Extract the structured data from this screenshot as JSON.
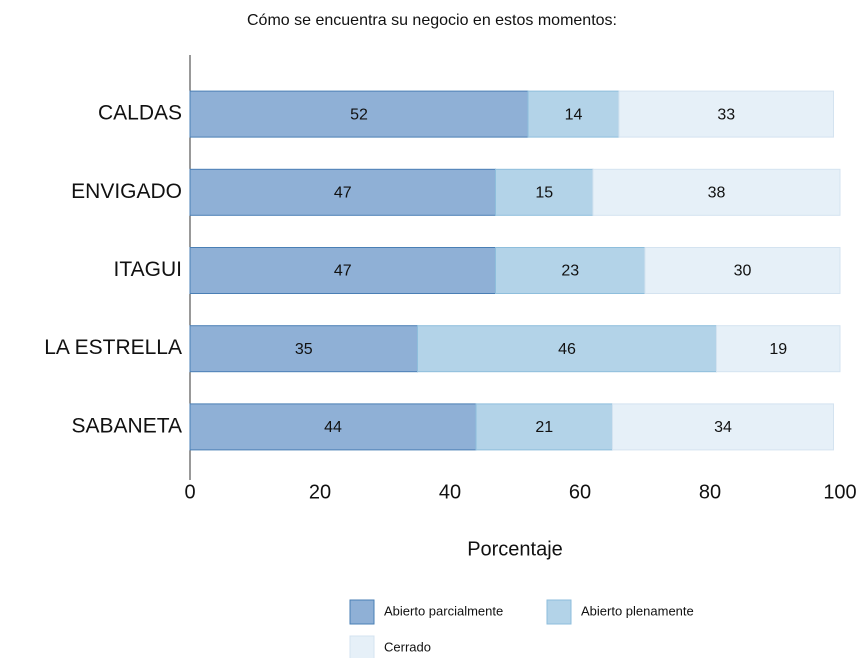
{
  "chart_data": {
    "type": "stacked_barh",
    "title": "Cómo se encuentra su negocio en estos momentos:",
    "categories": [
      "CALDAS",
      "ENVIGADO",
      "ITAGUI",
      "LA ESTRELLA",
      "SABANETA"
    ],
    "series": [
      {
        "name": "Abierto parcialmente",
        "color": "#8fb0d6",
        "values": [
          52,
          47,
          47,
          35,
          44
        ]
      },
      {
        "name": "Abierto plenamente",
        "color": "#b3d3e8",
        "values": [
          14,
          15,
          23,
          46,
          21
        ]
      },
      {
        "name": "Cerrado",
        "color": "#e6f0f8",
        "values": [
          33,
          38,
          30,
          19,
          34
        ]
      }
    ],
    "xlabel": "Porcentaje",
    "xlim": [
      0,
      100
    ],
    "xticks": [
      0,
      20,
      40,
      60,
      80,
      100
    ],
    "grid": false
  }
}
